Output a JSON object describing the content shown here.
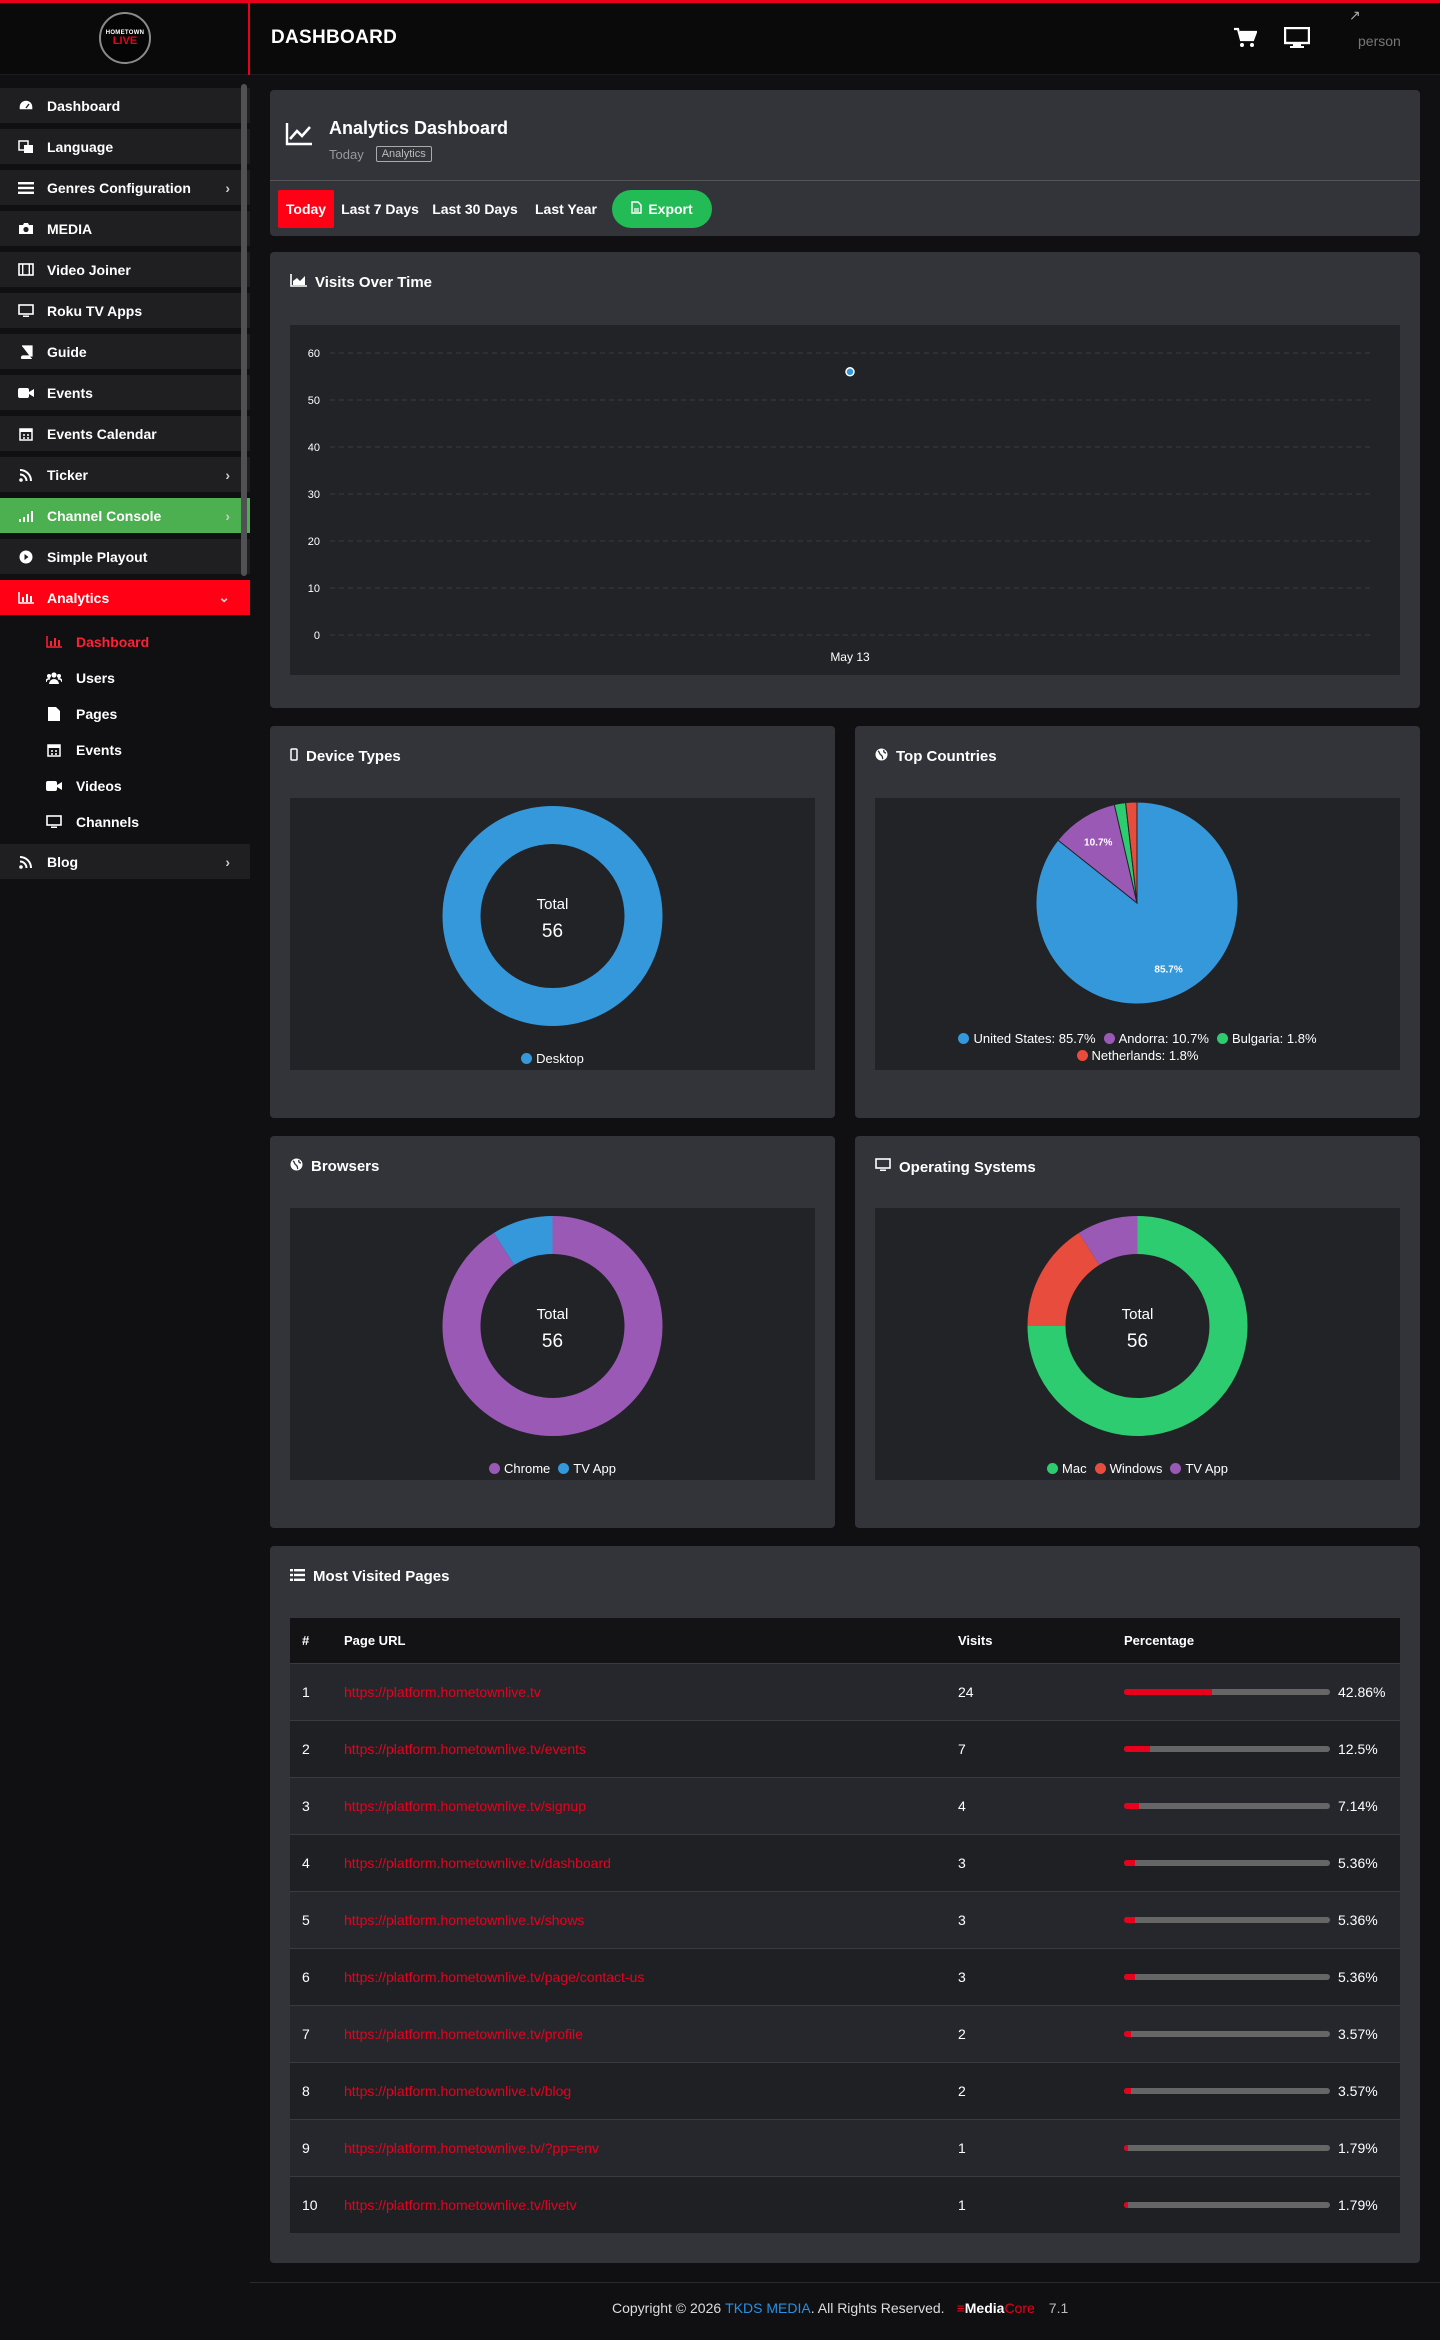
{
  "header": {
    "title": "DASHBOARD",
    "logo_line1": "HOMETOWN",
    "logo_line2": "LIVE",
    "user": "person"
  },
  "sidebar": {
    "items": [
      {
        "label": "Dashboard",
        "icon": "dashboard-icon"
      },
      {
        "label": "Language",
        "icon": "language-icon"
      },
      {
        "label": "Genres Configuration",
        "icon": "list-icon",
        "chevron": true
      },
      {
        "label": "MEDIA",
        "icon": "camera-icon"
      },
      {
        "label": "Video Joiner",
        "icon": "film-icon"
      },
      {
        "label": "Roku TV Apps",
        "icon": "monitor-icon"
      },
      {
        "label": "Guide",
        "icon": "book-icon"
      },
      {
        "label": "Events",
        "icon": "video-icon"
      },
      {
        "label": "Events Calendar",
        "icon": "calendar-icon"
      },
      {
        "label": "Ticker",
        "icon": "rss-icon",
        "chevron": true
      },
      {
        "label": "Channel Console",
        "icon": "signal-icon",
        "chevron": true
      },
      {
        "label": "Simple Playout",
        "icon": "play-icon"
      },
      {
        "label": "Analytics",
        "icon": "bar-chart-icon",
        "chevron": true
      }
    ],
    "sub_items": [
      {
        "label": "Dashboard",
        "icon": "bar-chart-icon"
      },
      {
        "label": "Users",
        "icon": "users-icon"
      },
      {
        "label": "Pages",
        "icon": "file-icon"
      },
      {
        "label": "Events",
        "icon": "calendar-icon"
      },
      {
        "label": "Videos",
        "icon": "video-icon"
      },
      {
        "label": "Channels",
        "icon": "monitor-icon"
      }
    ],
    "blog": {
      "label": "Blog",
      "icon": "rss-icon"
    }
  },
  "analytics_header": {
    "title": "Analytics Dashboard",
    "subtitle": "Today",
    "badge": "Analytics",
    "ranges": [
      "Today",
      "Last 7 Days",
      "Last 30 Days",
      "Last Year"
    ],
    "export": "Export"
  },
  "visits": {
    "title": "Visits Over Time",
    "chart_data": {
      "type": "scatter",
      "x": [
        "May 13"
      ],
      "y": [
        56
      ],
      "yticks": [
        0,
        10,
        20,
        30,
        40,
        50,
        60
      ],
      "ylim": [
        0,
        60
      ],
      "grid": true
    }
  },
  "device_types": {
    "title": "Device Types",
    "center_label": "Total",
    "center_value": "56",
    "chart_data": {
      "type": "pie",
      "labels": [
        "Desktop"
      ],
      "values": [
        56
      ],
      "colors": [
        "#3498db"
      ]
    }
  },
  "top_countries": {
    "title": "Top Countries",
    "chart_data": {
      "type": "pie",
      "labels": [
        "United States",
        "Andorra",
        "Bulgaria",
        "Netherlands"
      ],
      "values": [
        85.7,
        10.7,
        1.8,
        1.8
      ],
      "colors": [
        "#3498db",
        "#9b59b6",
        "#2ecc71",
        "#e74c3c"
      ],
      "slice_labels": [
        "85.7%",
        "10.7%",
        "",
        ""
      ]
    },
    "legend": [
      "United States: 85.7%",
      "Andorra: 10.7%",
      "Bulgaria: 1.8%",
      "Netherlands: 1.8%"
    ]
  },
  "browsers": {
    "title": "Browsers",
    "center_label": "Total",
    "center_value": "56",
    "chart_data": {
      "type": "pie",
      "labels": [
        "Chrome",
        "TV App"
      ],
      "values": [
        51,
        5
      ],
      "colors": [
        "#9b59b6",
        "#3498db"
      ]
    }
  },
  "operating_systems": {
    "title": "Operating Systems",
    "center_label": "Total",
    "center_value": "56",
    "chart_data": {
      "type": "pie",
      "labels": [
        "Mac",
        "Windows",
        "TV App"
      ],
      "values": [
        42,
        9,
        5
      ],
      "colors": [
        "#2ecc71",
        "#e74c3c",
        "#9b59b6"
      ]
    }
  },
  "most_visited": {
    "title": "Most Visited Pages",
    "columns": [
      "#",
      "Page URL",
      "Visits",
      "Percentage"
    ],
    "rows": [
      {
        "n": "1",
        "url": "https://platform.hometownlive.tv",
        "visits": "24",
        "pct": "42.86%",
        "frac": 0.4286
      },
      {
        "n": "2",
        "url": "https://platform.hometownlive.tv/events",
        "visits": "7",
        "pct": "12.5%",
        "frac": 0.125
      },
      {
        "n": "3",
        "url": "https://platform.hometownlive.tv/signup",
        "visits": "4",
        "pct": "7.14%",
        "frac": 0.0714
      },
      {
        "n": "4",
        "url": "https://platform.hometownlive.tv/dashboard",
        "visits": "3",
        "pct": "5.36%",
        "frac": 0.0536
      },
      {
        "n": "5",
        "url": "https://platform.hometownlive.tv/shows",
        "visits": "3",
        "pct": "5.36%",
        "frac": 0.0536
      },
      {
        "n": "6",
        "url": "https://platform.hometownlive.tv/page/contact-us",
        "visits": "3",
        "pct": "5.36%",
        "frac": 0.0536
      },
      {
        "n": "7",
        "url": "https://platform.hometownlive.tv/profile",
        "visits": "2",
        "pct": "3.57%",
        "frac": 0.0357
      },
      {
        "n": "8",
        "url": "https://platform.hometownlive.tv/blog",
        "visits": "2",
        "pct": "3.57%",
        "frac": 0.0357
      },
      {
        "n": "9",
        "url": "https://platform.hometownlive.tv/?pp=env",
        "visits": "1",
        "pct": "1.79%",
        "frac": 0.0179
      },
      {
        "n": "10",
        "url": "https://platform.hometownlive.tv/livetv",
        "visits": "1",
        "pct": "1.79%",
        "frac": 0.0179
      }
    ]
  },
  "footer": {
    "copyright": "Copyright © 2026",
    "company": "TKDS MEDIA",
    "rights": ". All Rights Reserved.",
    "product_a": "Media",
    "product_b": "Core",
    "version": "7.1"
  },
  "colors": {
    "accent": "#e8001c",
    "active_green": "#4caf50",
    "export_green": "#22bb55"
  }
}
